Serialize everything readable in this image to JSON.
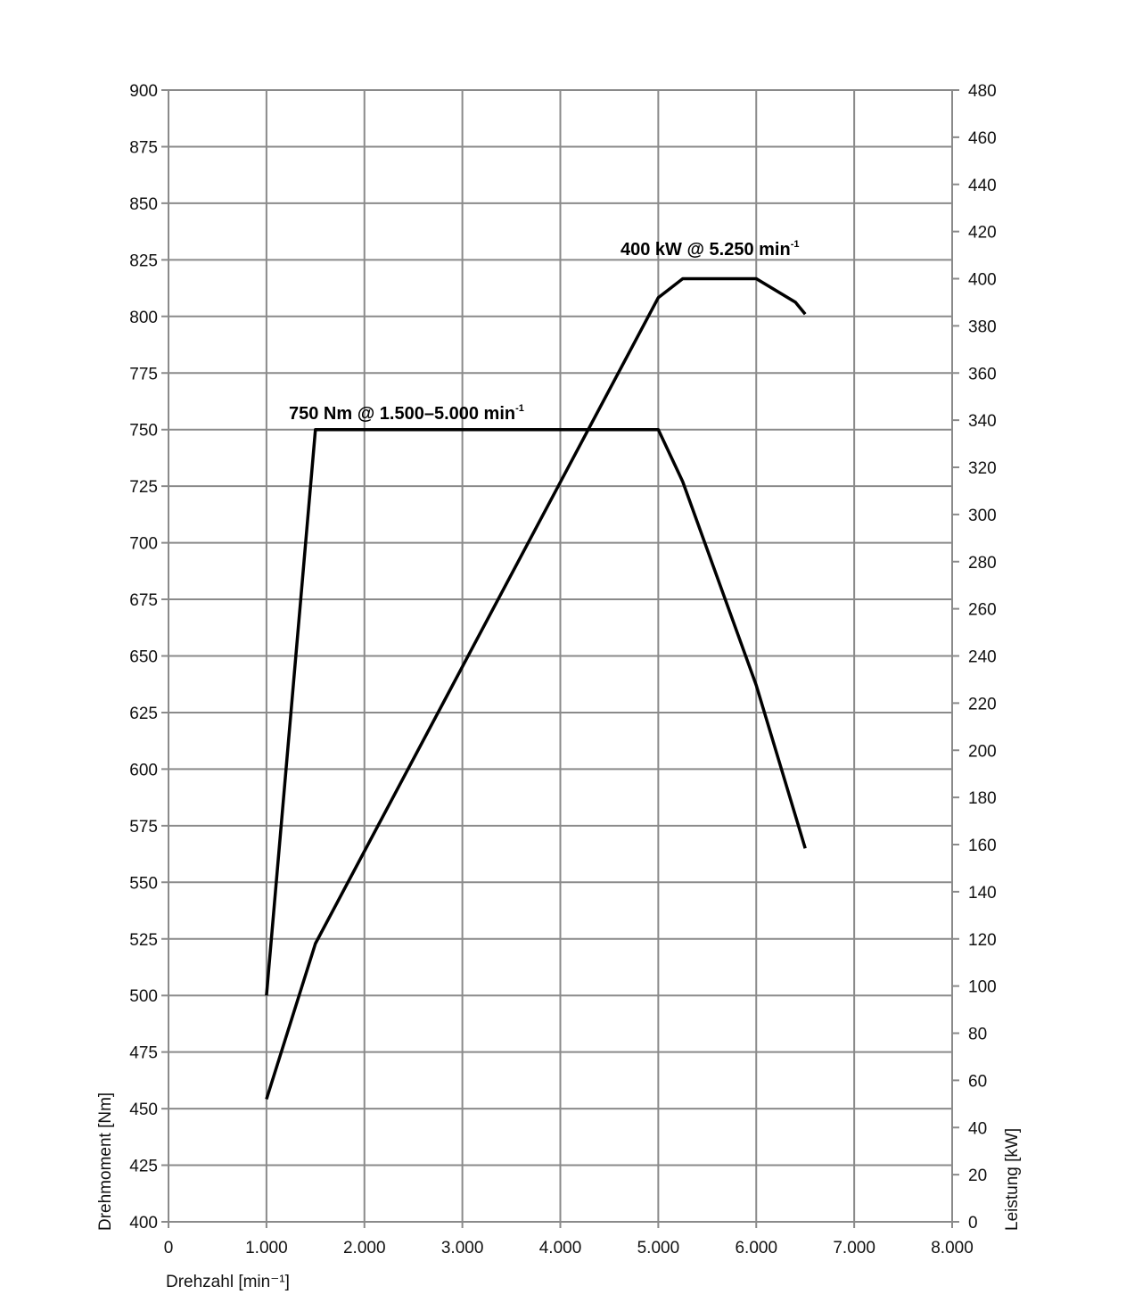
{
  "chart_data": {
    "type": "line",
    "title": "",
    "xlabel": "Drehzahl [min⁻¹]",
    "ylabel": "Drehmoment [Nm]",
    "y2label": "Leistung [kW]",
    "xlim": [
      0,
      8000
    ],
    "ylim": [
      400,
      900
    ],
    "y2lim": [
      0,
      480
    ],
    "grid": true,
    "x_ticks": [
      0,
      1000,
      2000,
      3000,
      4000,
      5000,
      6000,
      7000,
      8000
    ],
    "x_tick_labels": [
      "0",
      "1.000",
      "2.000",
      "3.000",
      "4.000",
      "5.000",
      "6.000",
      "7.000",
      "8.000"
    ],
    "y_ticks": [
      400,
      425,
      450,
      475,
      500,
      525,
      550,
      575,
      600,
      625,
      650,
      675,
      700,
      725,
      750,
      775,
      800,
      825,
      850,
      875,
      900
    ],
    "y2_ticks": [
      0,
      20,
      40,
      60,
      80,
      100,
      120,
      140,
      160,
      180,
      200,
      220,
      240,
      260,
      280,
      300,
      320,
      340,
      360,
      380,
      400,
      420,
      440,
      460,
      480
    ],
    "series": [
      {
        "name": "Drehmoment",
        "axis": "left",
        "unit": "Nm",
        "x": [
          1000,
          1500,
          5000,
          5250,
          6000,
          6500
        ],
        "y": [
          500,
          750,
          750,
          727,
          637,
          565
        ]
      },
      {
        "name": "Leistung",
        "axis": "right",
        "unit": "kW",
        "x": [
          1000,
          1500,
          5000,
          5250,
          6000,
          6400,
          6500
        ],
        "y": [
          52,
          118,
          392,
          400,
          400,
          390,
          385
        ]
      }
    ],
    "annotations": [
      {
        "text": "750 Nm @ 1.500–5.000 min",
        "sup": "-1",
        "series": "Drehmoment"
      },
      {
        "text": "400 kW @ 5.250 min",
        "sup": "-1",
        "series": "Leistung"
      }
    ]
  }
}
